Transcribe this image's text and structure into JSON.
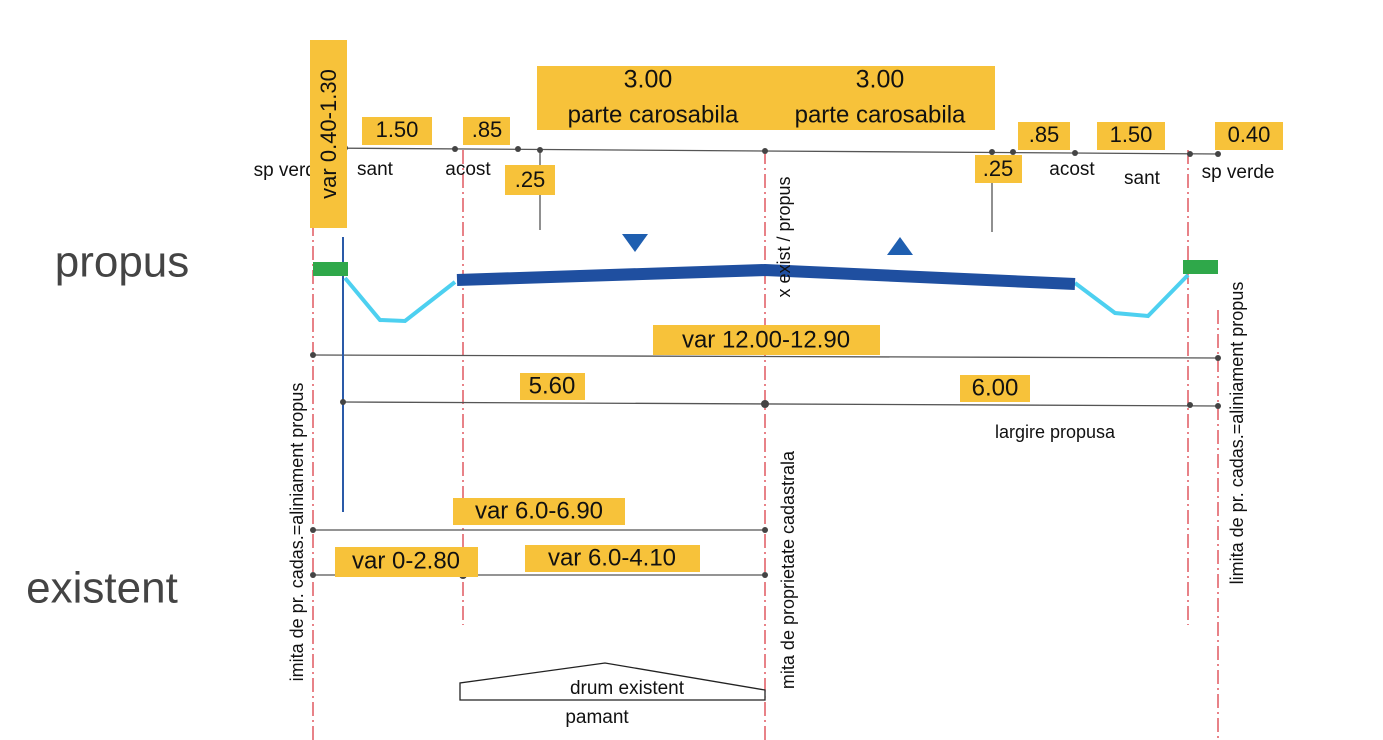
{
  "annotations": [
    "var 0.40-1.30",
    "1.50",
    ".85",
    "3.00",
    "3.00",
    "parte carosabila",
    "parte carosabila",
    ".85",
    "1.50",
    "0.40",
    "sp verde",
    "sant",
    "acost",
    ".25",
    ".25",
    "acost",
    "sant",
    "sp verde",
    "x exist / propus",
    "propus",
    "existent",
    "var 12.00-12.90",
    "5.60",
    "6.00",
    "largire propusa",
    "var 6.0-6.90",
    "var 0-2.80",
    "var 6.0-4.10",
    "imita de pr. cadas.=aliniament propus",
    "mita de proprietate cadastrala",
    "limita de pr. cadas.=aliniament propus",
    "drum existent",
    "pamant"
  ]
}
